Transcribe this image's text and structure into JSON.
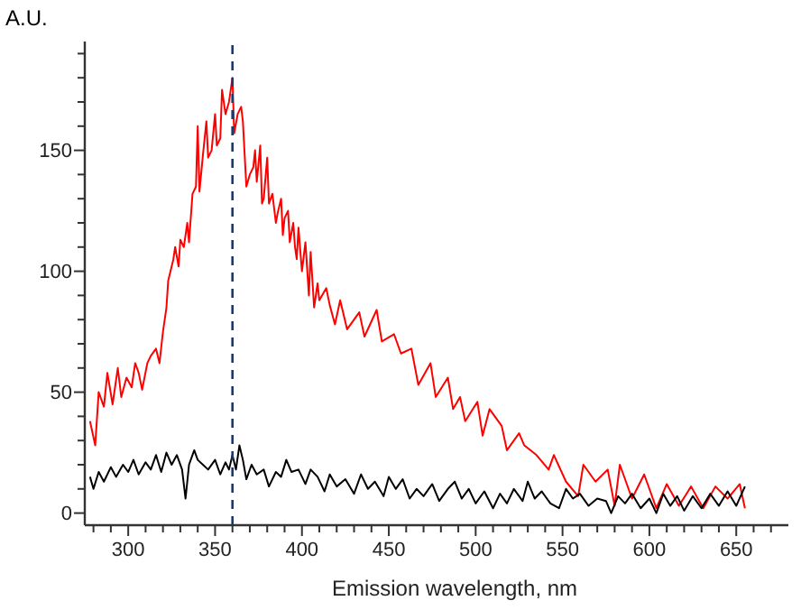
{
  "chart_data": {
    "type": "line",
    "ylabel": "A.U.",
    "xlabel": "Emission wavelength, nm",
    "xlim": [
      275,
      680
    ],
    "ylim": [
      -5,
      195
    ],
    "xticks": [
      {
        "value": 280,
        "label": null
      },
      {
        "value": 290,
        "label": null
      },
      300,
      {
        "value": 310,
        "label": null
      },
      {
        "value": 320,
        "label": null
      },
      {
        "value": 330,
        "label": null
      },
      {
        "value": 340,
        "label": null
      },
      350,
      {
        "value": 360,
        "label": null
      },
      {
        "value": 370,
        "label": null
      },
      {
        "value": 380,
        "label": null
      },
      {
        "value": 390,
        "label": null
      },
      400,
      {
        "value": 410,
        "label": null
      },
      {
        "value": 420,
        "label": null
      },
      {
        "value": 430,
        "label": null
      },
      {
        "value": 440,
        "label": null
      },
      450,
      {
        "value": 460,
        "label": null
      },
      {
        "value": 470,
        "label": null
      },
      {
        "value": 480,
        "label": null
      },
      {
        "value": 490,
        "label": null
      },
      500,
      {
        "value": 510,
        "label": null
      },
      {
        "value": 520,
        "label": null
      },
      {
        "value": 530,
        "label": null
      },
      {
        "value": 540,
        "label": null
      },
      550,
      {
        "value": 560,
        "label": null
      },
      {
        "value": 570,
        "label": null
      },
      {
        "value": 580,
        "label": null
      },
      {
        "value": 590,
        "label": null
      },
      600,
      {
        "value": 610,
        "label": null
      },
      {
        "value": 620,
        "label": null
      },
      {
        "value": 630,
        "label": null
      },
      {
        "value": 640,
        "label": null
      },
      650,
      {
        "value": 660,
        "label": null
      },
      {
        "value": 670,
        "label": null
      }
    ],
    "yticks": [
      0,
      {
        "value": 10,
        "label": null
      },
      {
        "value": 20,
        "label": null
      },
      {
        "value": 30,
        "label": null
      },
      {
        "value": 40,
        "label": null
      },
      50,
      {
        "value": 60,
        "label": null
      },
      {
        "value": 70,
        "label": null
      },
      {
        "value": 80,
        "label": null
      },
      {
        "value": 90,
        "label": null
      },
      100,
      {
        "value": 110,
        "label": null
      },
      {
        "value": 120,
        "label": null
      },
      {
        "value": 130,
        "label": null
      },
      {
        "value": 140,
        "label": null
      },
      150,
      {
        "value": 160,
        "label": null
      },
      {
        "value": 170,
        "label": null
      },
      {
        "value": 180,
        "label": null
      },
      {
        "value": 190,
        "label": null
      }
    ],
    "grid": false,
    "marker": "none",
    "line_style": "solid",
    "ref_lines": [
      {
        "axis": "x",
        "value": 360,
        "label": null,
        "color": "#1f3864",
        "line_style": "dashed"
      }
    ],
    "series": [
      {
        "color": "#ff0000",
        "x": [
          278,
          281,
          283,
          286,
          288,
          291,
          294,
          296,
          299,
          302,
          304,
          306,
          308,
          311,
          313,
          316,
          318,
          320,
          322,
          323,
          326,
          327,
          329,
          330,
          332,
          334,
          335,
          337,
          339,
          340,
          341,
          343,
          345,
          346,
          348,
          350,
          351,
          353,
          354,
          356,
          358,
          360,
          361,
          363,
          365,
          366,
          368,
          370,
          372,
          373,
          374,
          376,
          377,
          378,
          380,
          381,
          383,
          385,
          386,
          388,
          389,
          390,
          392,
          393,
          395,
          396,
          397,
          398,
          400,
          402,
          404,
          405,
          407,
          409,
          410,
          414,
          416,
          419,
          422,
          426,
          433,
          436,
          443,
          446,
          453,
          457,
          463,
          467,
          474,
          477,
          484,
          487,
          491,
          494,
          501,
          504,
          508,
          515,
          518,
          525,
          528,
          535,
          542,
          545,
          552,
          559,
          562,
          569,
          576,
          580,
          583,
          590,
          597,
          604,
          610,
          617,
          624,
          631,
          638,
          645,
          652,
          655
        ],
        "values": [
          38,
          28,
          50,
          44,
          58,
          45,
          60,
          48,
          56,
          52,
          62,
          58,
          51,
          62,
          65,
          68,
          62,
          75,
          85,
          96,
          105,
          110,
          102,
          113,
          110,
          120,
          112,
          132,
          135,
          160,
          133,
          148,
          162,
          147,
          150,
          165,
          152,
          155,
          175,
          165,
          170,
          180,
          157,
          165,
          168,
          162,
          135,
          140,
          143,
          150,
          137,
          152,
          128,
          130,
          147,
          128,
          132,
          120,
          124,
          130,
          115,
          122,
          125,
          112,
          120,
          110,
          105,
          118,
          100,
          112,
          90,
          108,
          85,
          95,
          88,
          93,
          86,
          78,
          88,
          76,
          83,
          73,
          84,
          71,
          74,
          66,
          68,
          53,
          62,
          48,
          56,
          43,
          48,
          38,
          46,
          32,
          43,
          36,
          26,
          33,
          28,
          24,
          18,
          24,
          13,
          7,
          20,
          13,
          18,
          3,
          20,
          6,
          16,
          2,
          12,
          3,
          11,
          2,
          11,
          6,
          12,
          2
        ]
      },
      {
        "color": "#000000",
        "x": [
          278,
          280,
          283,
          286,
          290,
          293,
          297,
          300,
          303,
          306,
          310,
          313,
          316,
          319,
          322,
          325,
          328,
          331,
          333,
          335,
          338,
          340,
          343,
          346,
          350,
          353,
          356,
          358,
          360,
          362,
          364,
          366,
          368,
          371,
          374,
          378,
          381,
          385,
          388,
          391,
          394,
          398,
          402,
          405,
          409,
          413,
          416,
          420,
          425,
          430,
          434,
          438,
          442,
          447,
          450,
          454,
          458,
          462,
          466,
          470,
          475,
          479,
          484,
          488,
          492,
          496,
          500,
          505,
          510,
          514,
          518,
          522,
          527,
          530,
          534,
          538,
          543,
          548,
          552,
          556,
          560,
          565,
          570,
          575,
          578,
          582,
          586,
          590,
          595,
          600,
          604,
          608,
          612,
          616,
          620,
          625,
          630,
          635,
          640,
          645,
          650,
          655
        ],
        "values": [
          15,
          10,
          17,
          13,
          19,
          15,
          20,
          17,
          22,
          16,
          21,
          18,
          24,
          17,
          25,
          20,
          24,
          18,
          6,
          20,
          26,
          22,
          20,
          18,
          22,
          16,
          21,
          18,
          24,
          18,
          28,
          22,
          14,
          20,
          16,
          18,
          11,
          17,
          15,
          22,
          17,
          18,
          12,
          18,
          15,
          9,
          16,
          11,
          14,
          8,
          16,
          10,
          13,
          7,
          15,
          10,
          14,
          6,
          10,
          7,
          12,
          5,
          10,
          13,
          6,
          10,
          4,
          9,
          2,
          8,
          4,
          10,
          5,
          13,
          6,
          9,
          4,
          2,
          10,
          6,
          8,
          3,
          6,
          5,
          0,
          7,
          4,
          8,
          2,
          6,
          0,
          8,
          3,
          7,
          1,
          7,
          2,
          8,
          3,
          9,
          3,
          11
        ]
      }
    ]
  }
}
